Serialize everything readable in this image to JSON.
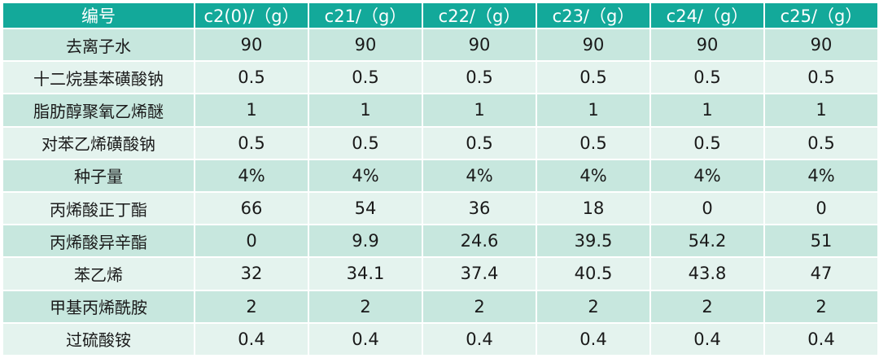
{
  "table": {
    "headers": [
      "编号",
      "c2(0)/（g）",
      "c21/（g）",
      "c22/（g）",
      "c23/（g）",
      "c24/（g）",
      "c25/（g）"
    ],
    "rows": [
      {
        "label": "去离子水",
        "values": [
          "90",
          "90",
          "90",
          "90",
          "90",
          "90"
        ]
      },
      {
        "label": "十二烷基苯磺酸钠",
        "values": [
          "0.5",
          "0.5",
          "0.5",
          "0.5",
          "0.5",
          "0.5"
        ]
      },
      {
        "label": "脂肪醇聚氧乙烯醚",
        "values": [
          "1",
          "1",
          "1",
          "1",
          "1",
          "1"
        ]
      },
      {
        "label": "对苯乙烯磺酸钠",
        "values": [
          "0.5",
          "0.5",
          "0.5",
          "0.5",
          "0.5",
          "0.5"
        ]
      },
      {
        "label": "种子量",
        "values": [
          "4%",
          "4%",
          "4%",
          "4%",
          "4%",
          "4%"
        ]
      },
      {
        "label": "丙烯酸正丁酯",
        "values": [
          "66",
          "54",
          "36",
          "18",
          "0",
          "0"
        ]
      },
      {
        "label": "丙烯酸异辛酯",
        "values": [
          "0",
          "9.9",
          "24.6",
          "39.5",
          "54.2",
          "51"
        ]
      },
      {
        "label": "苯乙烯",
        "values": [
          "32",
          "34.1",
          "37.4",
          "40.5",
          "43.8",
          "47"
        ]
      },
      {
        "label": "甲基丙烯酰胺",
        "values": [
          "2",
          "2",
          "2",
          "2",
          "2",
          "2"
        ]
      },
      {
        "label": "过硫酸铵",
        "values": [
          "0.4",
          "0.4",
          "0.4",
          "0.4",
          "0.4",
          "0.4"
        ]
      }
    ]
  },
  "colors": {
    "header_bg": "#13a99a",
    "row_odd_bg": "#c7e7de",
    "row_even_bg": "#e4f3ee",
    "border": "#ffffff"
  }
}
